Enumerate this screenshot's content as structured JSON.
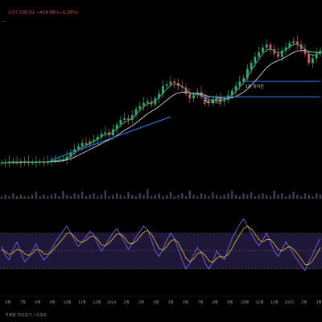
{
  "header": {
    "ticker_line": "2,07,195.51  −416.88 (−0.28%)",
    "tag": "—"
  },
  "annotations": {
    "support1": "1차 지지선",
    "support2": "2차 지지선"
  },
  "footer": {
    "note": "거래량 차트보기 / 리포트"
  },
  "colors": {
    "background": "#000000",
    "up_candle": "#2fa86b",
    "down_candle": "#e0505b",
    "ma_fast": "#36a86a",
    "ma_slow": "#cfd2d6",
    "trendline": "#2f6fe0",
    "support_line": "#3a7bf0",
    "rsi_line": "#6b5bd6",
    "rsi_signal": "#f0c020",
    "rsi_band": "#2a1f4a",
    "volume": "#3a3f52"
  },
  "chart_data": [
    {
      "type": "candlestick",
      "panel": "price",
      "x_tick_labels": [
        "6월",
        "7월",
        "8월",
        "9월",
        "10월",
        "11월",
        "12월",
        "2024",
        "2월",
        "3월",
        "4월",
        "5월",
        "6월",
        "7월",
        "8월",
        "9월",
        "10월",
        "11월",
        "12월",
        "2025",
        "2월",
        "3월"
      ],
      "closes": [
        5,
        5,
        6,
        6,
        5,
        6,
        6,
        5,
        5,
        6,
        6,
        5,
        6,
        7,
        7,
        7,
        7,
        9,
        12,
        14,
        16,
        18,
        17,
        19,
        20,
        22,
        24,
        25,
        23,
        27,
        30,
        33,
        34,
        33,
        36,
        40,
        42,
        44,
        45,
        43,
        47,
        50,
        55,
        56,
        58,
        57,
        55,
        54,
        50,
        47,
        49,
        51,
        48,
        45,
        44,
        46,
        47,
        45,
        46,
        49,
        52,
        55,
        58,
        60,
        66,
        70,
        74,
        77,
        80,
        82,
        79,
        76,
        74,
        78,
        80,
        83,
        84,
        82,
        79,
        76,
        70,
        73,
        76,
        78
      ],
      "ma_fast": [
        5,
        5,
        5.5,
        5.7,
        5.6,
        5.7,
        5.8,
        5.7,
        5.6,
        5.7,
        5.8,
        5.7,
        5.9,
        6.2,
        6.5,
        6.8,
        7,
        8,
        9.5,
        11.5,
        13.5,
        15.5,
        16.5,
        17.8,
        19,
        20.5,
        22,
        23.5,
        23.5,
        25,
        27,
        29.5,
        31.5,
        32.5,
        34,
        36.5,
        39,
        41.5,
        43.5,
        44,
        45.5,
        47.5,
        50.5,
        53,
        55.5,
        56.5,
        56,
        55,
        53,
        50.5,
        49.5,
        49.8,
        49,
        47.5,
        46,
        46,
        46.3,
        46,
        46,
        47.2,
        49,
        51.5,
        54.5,
        57,
        61,
        65,
        69,
        72.5,
        76,
        78.5,
        79,
        78,
        76.5,
        77,
        78.5,
        80.5,
        82,
        82,
        81,
        79,
        76,
        75,
        75.5,
        76.5
      ],
      "ma_slow": [
        5.2,
        5.2,
        5.3,
        5.3,
        5.3,
        5.4,
        5.5,
        5.5,
        5.5,
        5.5,
        5.6,
        5.6,
        5.7,
        5.8,
        6,
        6.2,
        6.4,
        7,
        7.8,
        8.8,
        10,
        11.3,
        12.5,
        13.8,
        15,
        16.3,
        17.6,
        19,
        20,
        21.3,
        22.8,
        24.5,
        26.2,
        27.6,
        29.2,
        31,
        33,
        35,
        37,
        38.5,
        40,
        41.8,
        43.8,
        45.8,
        47.8,
        49.5,
        50.5,
        51,
        51,
        50.6,
        50.3,
        50.1,
        49.7,
        49,
        48.3,
        47.9,
        47.6,
        47.2,
        47,
        47,
        47.4,
        48.2,
        49.5,
        51,
        53,
        55.5,
        58.2,
        61,
        64,
        67,
        69,
        70.5,
        71.5,
        72.7,
        74,
        75.4,
        76.8,
        77.8,
        78.2,
        78.2,
        77.5,
        77,
        76.8,
        76.8
      ],
      "trendline": {
        "from": [
          13,
          7
        ],
        "to": [
          44,
          35
        ]
      },
      "support_lines": [
        {
          "label": "1차 지지선",
          "value": 58,
          "from_index": 63,
          "to_index": 83
        },
        {
          "label": "2차 지지선",
          "value": 48,
          "from_index": 52,
          "to_index": 83
        }
      ]
    },
    {
      "type": "bar",
      "panel": "volume",
      "values": [
        2,
        3,
        2,
        4,
        2,
        3,
        2,
        2,
        3,
        5,
        2,
        3,
        2,
        3,
        4,
        2,
        6,
        3,
        2,
        4,
        3,
        5,
        2,
        3,
        4,
        2,
        3,
        6,
        2,
        3,
        4,
        3,
        2,
        5,
        3,
        2,
        4,
        3,
        7,
        2,
        3,
        4,
        2,
        3,
        5,
        2,
        3,
        4,
        2,
        6,
        3,
        2,
        4,
        3,
        2,
        5,
        3,
        2,
        3,
        4,
        6,
        3,
        2,
        4,
        3,
        5,
        2,
        3,
        4,
        3,
        2,
        6,
        3,
        4,
        2,
        3,
        5,
        3,
        2,
        4,
        3,
        2,
        4,
        3
      ]
    },
    {
      "type": "line",
      "panel": "rsi",
      "band": [
        30,
        70
      ],
      "values": [
        55,
        45,
        40,
        52,
        60,
        48,
        38,
        42,
        50,
        58,
        47,
        40,
        44,
        52,
        60,
        66,
        72,
        78,
        70,
        62,
        55,
        60,
        66,
        72,
        68,
        58,
        50,
        56,
        64,
        70,
        75,
        68,
        60,
        52,
        58,
        66,
        72,
        78,
        74,
        62,
        50,
        44,
        52,
        62,
        70,
        64,
        52,
        40,
        30,
        36,
        46,
        54,
        48,
        36,
        30,
        38,
        50,
        44,
        40,
        52,
        64,
        72,
        80,
        86,
        78,
        70,
        62,
        56,
        62,
        70,
        60,
        50,
        44,
        52,
        60,
        54,
        46,
        40,
        34,
        28,
        38,
        46,
        56,
        64
      ],
      "signal": [
        52,
        49,
        46,
        48,
        52,
        51,
        47,
        45,
        47,
        52,
        51,
        47,
        46,
        49,
        54,
        59,
        64,
        70,
        70,
        66,
        61,
        60,
        62,
        66,
        67,
        63,
        57,
        56,
        59,
        64,
        69,
        69,
        65,
        59,
        58,
        61,
        66,
        71,
        73,
        69,
        61,
        53,
        51,
        55,
        61,
        63,
        59,
        51,
        42,
        38,
        41,
        47,
        49,
        45,
        39,
        37,
        42,
        44,
        43,
        46,
        53,
        61,
        68,
        75,
        78,
        75,
        69,
        63,
        60,
        63,
        63,
        58,
        52,
        50,
        53,
        55,
        52,
        47,
        41,
        35,
        35,
        39,
        46,
        54
      ]
    }
  ]
}
